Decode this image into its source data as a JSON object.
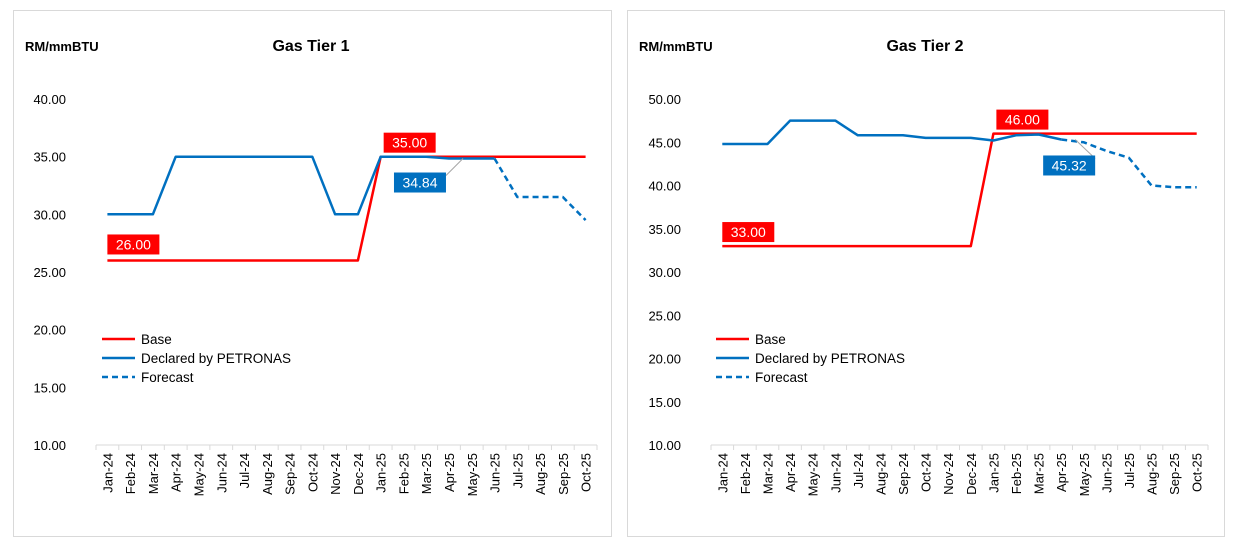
{
  "chart_data": [
    {
      "type": "line",
      "title": "Gas Tier 1",
      "ylabel": "RM/mmBTU",
      "ylim": [
        10,
        40
      ],
      "yticks": [
        "10.00",
        "15.00",
        "20.00",
        "25.00",
        "30.00",
        "35.00",
        "40.00"
      ],
      "categories": [
        "Jan-24",
        "Feb-24",
        "Mar-24",
        "Apr-24",
        "May-24",
        "Jun-24",
        "Jul-24",
        "Aug-24",
        "Sep-24",
        "Oct-24",
        "Nov-24",
        "Dec-24",
        "Jan-25",
        "Feb-25",
        "Mar-25",
        "Apr-25",
        "May-25",
        "Jun-25",
        "Jul-25",
        "Aug-25",
        "Sep-25",
        "Oct-25"
      ],
      "series": [
        {
          "name": "Base",
          "color": "#ff0000",
          "style": "solid",
          "values": [
            26,
            26,
            26,
            26,
            26,
            26,
            26,
            26,
            26,
            26,
            26,
            26,
            35,
            35,
            35,
            35,
            35,
            35,
            35,
            35,
            35,
            35
          ]
        },
        {
          "name": "Declared by PETRONAS",
          "color": "#0070c0",
          "style": "solid",
          "values": [
            30,
            30,
            30,
            35,
            35,
            35,
            35,
            35,
            35,
            35,
            30,
            30,
            35,
            35,
            35,
            34.84,
            34.84,
            34.84,
            null,
            null,
            null,
            null
          ]
        },
        {
          "name": "Forecast",
          "color": "#0070c0",
          "style": "dashed",
          "values": [
            null,
            null,
            null,
            null,
            null,
            null,
            null,
            null,
            null,
            null,
            null,
            null,
            null,
            null,
            null,
            null,
            null,
            34.84,
            31.5,
            31.5,
            31.5,
            29.5
          ]
        }
      ],
      "annotations": [
        {
          "text": "26.00",
          "category": "Jan-24",
          "color": "#ff0000"
        },
        {
          "text": "35.00",
          "category": "Jan-25",
          "color": "#ff0000"
        },
        {
          "text": "34.84",
          "category": "Apr-25",
          "color": "#0070c0"
        }
      ],
      "legend": {
        "position": "bottom-left",
        "entries": [
          "Base",
          "Declared by PETRONAS",
          "Forecast"
        ]
      }
    },
    {
      "type": "line",
      "title": "Gas Tier 2",
      "ylabel": "RM/mmBTU",
      "ylim": [
        10,
        50
      ],
      "yticks": [
        "10.00",
        "15.00",
        "20.00",
        "25.00",
        "30.00",
        "35.00",
        "40.00",
        "45.00",
        "50.00"
      ],
      "categories": [
        "Jan-24",
        "Feb-24",
        "Mar-24",
        "Apr-24",
        "May-24",
        "Jun-24",
        "Jul-24",
        "Aug-24",
        "Sep-24",
        "Oct-24",
        "Nov-24",
        "Dec-24",
        "Jan-25",
        "Feb-25",
        "Mar-25",
        "Apr-25",
        "May-25",
        "Jun-25",
        "Jul-25",
        "Aug-25",
        "Sep-25",
        "Oct-25"
      ],
      "series": [
        {
          "name": "Base",
          "color": "#ff0000",
          "style": "solid",
          "values": [
            33,
            33,
            33,
            33,
            33,
            33,
            33,
            33,
            33,
            33,
            33,
            33,
            46,
            46,
            46,
            46,
            46,
            46,
            46,
            46,
            46,
            46
          ]
        },
        {
          "name": "Declared by PETRONAS",
          "color": "#0070c0",
          "style": "solid",
          "values": [
            44.8,
            44.8,
            44.8,
            47.5,
            47.5,
            47.5,
            45.8,
            45.8,
            45.8,
            45.5,
            45.5,
            45.5,
            45.2,
            45.8,
            45.9,
            45.32,
            null,
            null,
            null,
            null,
            null,
            null
          ]
        },
        {
          "name": "Forecast",
          "color": "#0070c0",
          "style": "dashed",
          "values": [
            null,
            null,
            null,
            null,
            null,
            null,
            null,
            null,
            null,
            null,
            null,
            null,
            null,
            null,
            null,
            45.32,
            45.0,
            44.0,
            43.2,
            40.0,
            39.8,
            39.8
          ]
        }
      ],
      "annotations": [
        {
          "text": "33.00",
          "category": "Jan-24",
          "color": "#ff0000"
        },
        {
          "text": "46.00",
          "category": "Jan-25",
          "color": "#ff0000"
        },
        {
          "text": "45.32",
          "category": "Apr-25",
          "color": "#0070c0"
        }
      ],
      "legend": {
        "position": "bottom-left",
        "entries": [
          "Base",
          "Declared by PETRONAS",
          "Forecast"
        ]
      }
    }
  ]
}
